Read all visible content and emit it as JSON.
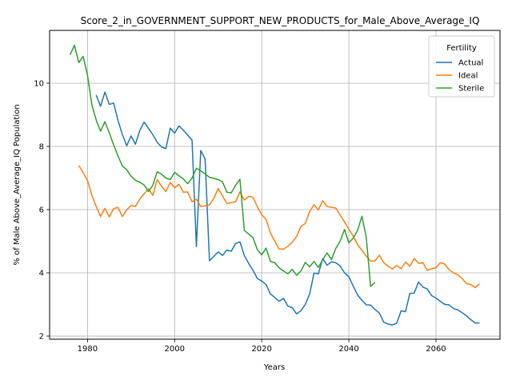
{
  "chart_data": {
    "type": "line",
    "title": "Score_2_in_GOVERNMENT_SUPPORT_NEW_PRODUCTS_for_Male_Above_Average_IQ",
    "xlabel": "Years",
    "ylabel": "% of Male Above_Average_IQ Population",
    "xlim": [
      1971.3,
      2074.7
    ],
    "ylim": [
      1.9,
      11.67
    ],
    "xticks": [
      1980,
      2000,
      2020,
      2040,
      2060
    ],
    "yticks": [
      2,
      4,
      6,
      8,
      10
    ],
    "grid": true,
    "legend": {
      "title": "Fertility",
      "placement": "top-right"
    },
    "series": [
      {
        "name": "Actual",
        "color": "#1f77b4",
        "x": [
          1982,
          1983,
          1984,
          1985,
          1986,
          1987,
          1988,
          1989,
          1990,
          1991,
          1992,
          1993,
          1994,
          1995,
          1996,
          1997,
          1998,
          1999,
          2000,
          2001,
          2002,
          2003,
          2004,
          2005,
          2006,
          2007,
          2008,
          2009,
          2010,
          2011,
          2012,
          2013,
          2014,
          2015,
          2016,
          2017,
          2018,
          2019,
          2020,
          2021,
          2022,
          2023,
          2024,
          2025,
          2026,
          2027,
          2028,
          2029,
          2030,
          2031,
          2032,
          2033,
          2034,
          2035,
          2036,
          2037,
          2038,
          2039,
          2040,
          2041,
          2042,
          2043,
          2044,
          2045,
          2046,
          2047,
          2048,
          2049,
          2050,
          2051,
          2052,
          2053,
          2054,
          2055,
          2056,
          2057,
          2058,
          2059,
          2060,
          2061,
          2062,
          2063,
          2064,
          2065,
          2066,
          2067,
          2068,
          2069,
          2070
        ],
        "y": [
          9.62,
          9.27,
          9.72,
          9.33,
          9.37,
          8.82,
          8.38,
          8.02,
          8.33,
          8.07,
          8.5,
          8.77,
          8.57,
          8.37,
          8.13,
          7.98,
          7.93,
          8.58,
          8.42,
          8.65,
          8.51,
          8.36,
          8.2,
          4.83,
          7.87,
          7.6,
          4.38,
          4.52,
          4.66,
          4.55,
          4.72,
          4.68,
          4.93,
          4.98,
          4.55,
          4.3,
          4.08,
          3.82,
          3.74,
          3.63,
          3.33,
          3.22,
          3.1,
          3.19,
          2.95,
          2.9,
          2.7,
          2.8,
          3.0,
          3.33,
          3.99,
          3.97,
          4.45,
          4.24,
          4.35,
          4.32,
          4.22,
          4.0,
          3.88,
          3.58,
          3.3,
          3.13,
          2.99,
          2.98,
          2.84,
          2.73,
          2.44,
          2.38,
          2.35,
          2.41,
          2.8,
          2.77,
          3.35,
          3.36,
          3.71,
          3.55,
          3.49,
          3.28,
          3.2,
          3.1,
          3.0,
          2.99,
          2.87,
          2.83,
          2.74,
          2.64,
          2.52,
          2.41,
          2.42
        ]
      },
      {
        "name": "Ideal",
        "color": "#ff7f0e",
        "x": [
          1978,
          1979,
          1980,
          1981,
          1982,
          1983,
          1984,
          1985,
          1986,
          1987,
          1988,
          1989,
          1990,
          1991,
          1992,
          1993,
          1994,
          1995,
          1996,
          1997,
          1998,
          1999,
          2000,
          2001,
          2002,
          2003,
          2004,
          2005,
          2006,
          2007,
          2008,
          2009,
          2010,
          2011,
          2012,
          2013,
          2014,
          2015,
          2016,
          2017,
          2018,
          2019,
          2020,
          2021,
          2022,
          2023,
          2024,
          2025,
          2026,
          2027,
          2028,
          2029,
          2030,
          2031,
          2032,
          2033,
          2034,
          2035,
          2036,
          2037,
          2038,
          2039,
          2040,
          2041,
          2042,
          2043,
          2044,
          2045,
          2046,
          2047,
          2048,
          2049,
          2050,
          2051,
          2052,
          2053,
          2054,
          2055,
          2056,
          2057,
          2058,
          2059,
          2060,
          2061,
          2062,
          2063,
          2064,
          2065,
          2066,
          2067,
          2068,
          2069,
          2070
        ],
        "y": [
          7.4,
          7.17,
          6.92,
          6.46,
          6.1,
          5.78,
          6.04,
          5.77,
          6.03,
          6.07,
          5.78,
          5.99,
          6.13,
          6.1,
          6.33,
          6.5,
          6.66,
          6.45,
          6.95,
          6.74,
          6.57,
          6.86,
          6.69,
          6.8,
          6.55,
          6.56,
          6.25,
          6.33,
          6.1,
          6.12,
          6.15,
          6.36,
          6.67,
          6.43,
          6.19,
          6.22,
          6.25,
          6.56,
          6.3,
          6.42,
          6.39,
          6.09,
          5.84,
          5.69,
          5.26,
          5.0,
          4.75,
          4.75,
          4.84,
          4.97,
          5.15,
          5.47,
          5.56,
          5.94,
          6.16,
          5.99,
          6.28,
          6.1,
          6.07,
          6.05,
          5.83,
          5.61,
          5.38,
          5.16,
          4.89,
          4.71,
          4.53,
          4.37,
          4.38,
          4.56,
          4.32,
          4.21,
          4.12,
          4.23,
          4.13,
          4.34,
          4.21,
          4.45,
          4.3,
          4.32,
          4.08,
          4.13,
          4.16,
          4.32,
          4.28,
          4.1,
          4.0,
          3.94,
          3.82,
          3.66,
          3.63,
          3.53,
          3.65
        ]
      },
      {
        "name": "Sterile",
        "color": "#2ca02c",
        "x": [
          1976,
          1977,
          1978,
          1979,
          1980,
          1981,
          1982,
          1983,
          1984,
          1985,
          1986,
          1987,
          1988,
          1989,
          1990,
          1991,
          1992,
          1993,
          1994,
          1995,
          1996,
          1997,
          1998,
          1999,
          2000,
          2001,
          2002,
          2003,
          2004,
          2005,
          2006,
          2007,
          2008,
          2009,
          2010,
          2011,
          2012,
          2013,
          2014,
          2015,
          2016,
          2017,
          2018,
          2019,
          2020,
          2021,
          2022,
          2023,
          2024,
          2025,
          2026,
          2027,
          2028,
          2029,
          2030,
          2031,
          2032,
          2033,
          2034,
          2035,
          2036,
          2037,
          2038,
          2039,
          2040,
          2041,
          2042,
          2043,
          2044,
          2045,
          2046
        ],
        "y": [
          10.9,
          11.2,
          10.65,
          10.85,
          10.25,
          9.32,
          8.83,
          8.48,
          8.78,
          8.43,
          8.05,
          7.7,
          7.38,
          7.26,
          7.06,
          6.93,
          6.87,
          6.78,
          6.57,
          6.77,
          7.2,
          7.12,
          7.0,
          6.95,
          7.18,
          7.07,
          6.97,
          6.82,
          7.0,
          7.31,
          7.23,
          7.13,
          7.02,
          6.99,
          6.95,
          6.88,
          6.55,
          6.53,
          6.77,
          6.96,
          5.34,
          5.23,
          5.11,
          4.73,
          4.57,
          4.78,
          4.36,
          4.32,
          4.16,
          4.06,
          3.97,
          4.11,
          3.92,
          4.06,
          4.33,
          4.19,
          4.36,
          4.17,
          4.42,
          4.63,
          4.42,
          4.77,
          5.0,
          5.37,
          4.95,
          5.1,
          5.34,
          5.79,
          5.12,
          3.57,
          3.7
        ]
      }
    ]
  }
}
